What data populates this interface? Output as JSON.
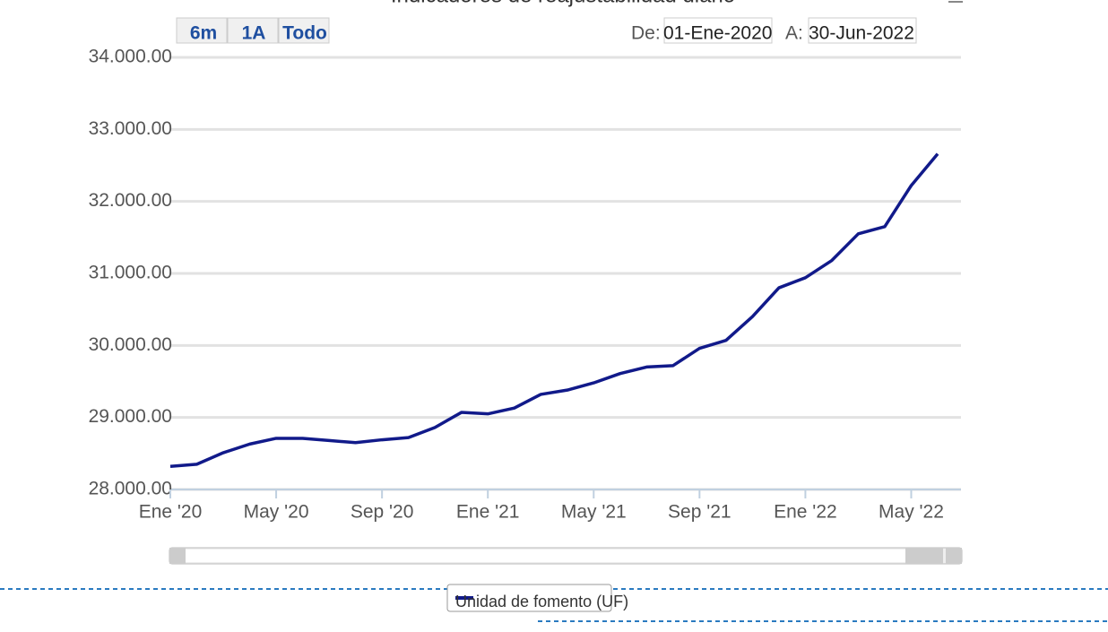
{
  "chart_data": {
    "type": "line",
    "title": "Indicadores de reajustabilidad diario",
    "range_buttons": [
      "6m",
      "1A",
      "Todo"
    ],
    "range_from_label": "De:",
    "range_from": "01-Ene-2020",
    "range_to_label": "A:",
    "range_to": "30-Jun-2022",
    "x": [
      "2020-01",
      "2020-02",
      "2020-03",
      "2020-04",
      "2020-05",
      "2020-06",
      "2020-07",
      "2020-08",
      "2020-09",
      "2020-10",
      "2020-11",
      "2020-12",
      "2021-01",
      "2021-02",
      "2021-03",
      "2021-04",
      "2021-05",
      "2021-06",
      "2021-07",
      "2021-08",
      "2021-09",
      "2021-10",
      "2021-11",
      "2021-12",
      "2022-01",
      "2022-02",
      "2022-03",
      "2022-04",
      "2022-05",
      "2022-06"
    ],
    "series": [
      {
        "name": "Unidad de fomento (UF)",
        "color": "#111a8a",
        "values": [
          28320,
          28350,
          28510,
          28630,
          28710,
          28710,
          28680,
          28650,
          28690,
          28720,
          28860,
          29070,
          29050,
          29130,
          29320,
          29380,
          29480,
          29610,
          29700,
          29720,
          29960,
          30070,
          30400,
          30800,
          30940,
          31180,
          31550,
          31650,
          32220,
          32660
        ]
      }
    ],
    "xlim": [
      "2020-01",
      "2022-06"
    ],
    "xticks": [
      {
        "value": "2020-01",
        "label": "Ene '20"
      },
      {
        "value": "2020-05",
        "label": "May '20"
      },
      {
        "value": "2020-09",
        "label": "Sep '20"
      },
      {
        "value": "2021-01",
        "label": "Ene '21"
      },
      {
        "value": "2021-05",
        "label": "May '21"
      },
      {
        "value": "2021-09",
        "label": "Sep '21"
      },
      {
        "value": "2022-01",
        "label": "Ene '22"
      },
      {
        "value": "2022-05",
        "label": "May '22"
      }
    ],
    "ylim": [
      28000,
      34000
    ],
    "yticks": [
      {
        "value": 28000,
        "label": "28.000.00"
      },
      {
        "value": 29000,
        "label": "29.000.00"
      },
      {
        "value": 30000,
        "label": "30.000.00"
      },
      {
        "value": 31000,
        "label": "31.000.00"
      },
      {
        "value": 32000,
        "label": "32.000.00"
      },
      {
        "value": 33000,
        "label": "33.000.00"
      },
      {
        "value": 34000,
        "label": "34.000.00"
      }
    ],
    "grid": true
  }
}
